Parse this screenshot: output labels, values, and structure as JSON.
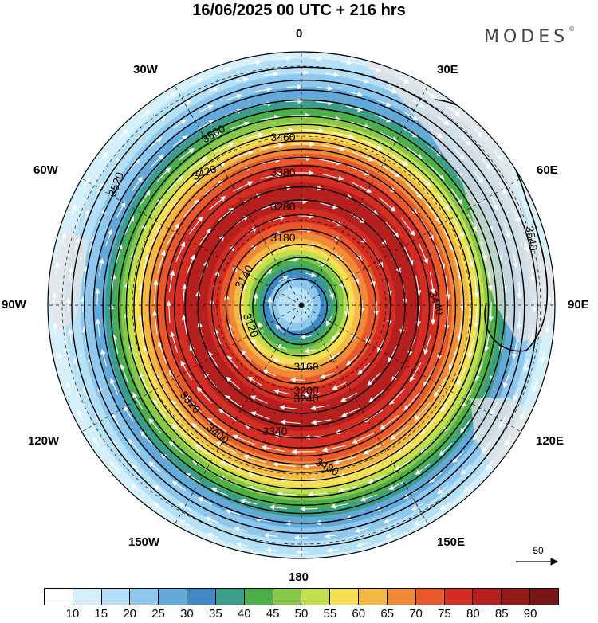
{
  "header": {
    "title": "16/06/2025  00 UTC  + 216 hrs",
    "logo": "MODES"
  },
  "map": {
    "projection": "polar stereographic",
    "hemisphere": "south",
    "field_shaded": "wind speed",
    "field_contoured": "geopotential height",
    "longitude_labels": {
      "top": "0",
      "top_right": "30E",
      "right_upper": "60E",
      "right": "90E",
      "right_lower": "120E",
      "bottom_right": "150E",
      "bottom": "180",
      "bottom_left": "150W",
      "left_lower": "120W",
      "left": "90W",
      "left_upper": "60W",
      "top_left": "30W"
    },
    "contour_labels": [
      "3460",
      "3500",
      "3520",
      "3420",
      "3380",
      "3280",
      "3180",
      "3140",
      "3120",
      "3160",
      "3200",
      "3240",
      "3340",
      "3480",
      "3540",
      "3440",
      "3320",
      "3400"
    ],
    "reference_vector": {
      "label": "50"
    }
  },
  "colorbar": {
    "colors": [
      "#ffffff",
      "#d6f0fb",
      "#b5e0f6",
      "#8fc8ee",
      "#63aadb",
      "#3f89c4",
      "#3a9e8a",
      "#4cb04a",
      "#86c847",
      "#c4df4e",
      "#f7de55",
      "#f6b845",
      "#f08a36",
      "#e8582b",
      "#d42d24",
      "#b51f1e",
      "#951919",
      "#7a1515"
    ],
    "labels": [
      "10",
      "15",
      "20",
      "25",
      "30",
      "35",
      "40",
      "45",
      "50",
      "55",
      "60",
      "65",
      "70",
      "75",
      "80",
      "85",
      "90"
    ]
  },
  "colors": {
    "land": "#e4e4e4",
    "contour": "#000000",
    "vector": "#ffffff"
  }
}
